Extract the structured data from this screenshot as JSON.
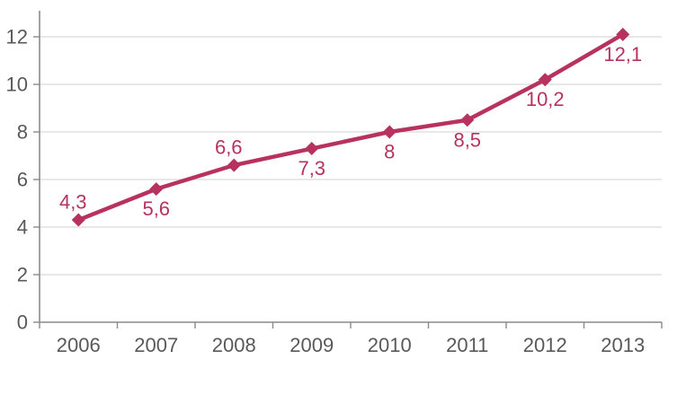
{
  "chart_data": {
    "type": "line",
    "title": "",
    "categories": [
      "2006",
      "2007",
      "2008",
      "2009",
      "2010",
      "2011",
      "2012",
      "2013"
    ],
    "values": [
      4.3,
      5.6,
      6.6,
      7.3,
      8,
      8.5,
      10.2,
      12.1
    ],
    "data_labels": [
      "4,3",
      "5,6",
      "6,6",
      "7,3",
      "8",
      "8,5",
      "10,2",
      "12,1"
    ],
    "label_positions": [
      "above",
      "below",
      "above",
      "below",
      "below",
      "below",
      "below",
      "below"
    ],
    "decimal_separator": ",",
    "y_tick_labels": [
      "0",
      "2",
      "4",
      "6",
      "8",
      "10",
      "12"
    ],
    "y_tick_values": [
      0,
      2,
      4,
      6,
      8,
      10,
      12
    ],
    "ylim": [
      0,
      13
    ],
    "xlabel": "",
    "ylabel": "",
    "grid": "horizontal",
    "legend": "none",
    "marker": "diamond",
    "colors": {
      "series": "#B7325F",
      "axis_text": "#595959",
      "axis_line": "#8A8A8A",
      "gridline": "#DADADA",
      "background": "#FFFFFF"
    }
  }
}
